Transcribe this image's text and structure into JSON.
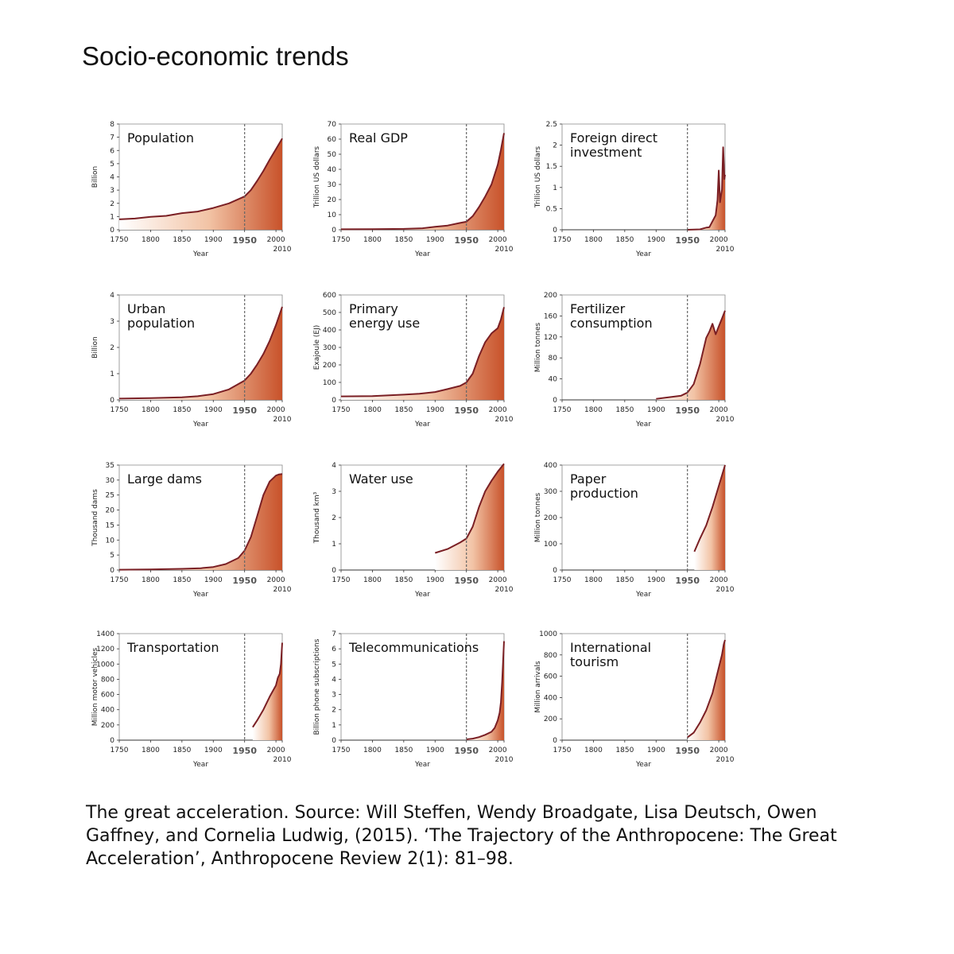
{
  "title": "Socio-economic trends",
  "caption": "The great acceleration. Source: Will Steffen, Wendy Broadgate, Lisa Deutsch, Owen Gaffney, and Cornelia Ludwig, (2015). ‘The Trajectory of the Anthropocene: The Great Acceleration’, Anthropocene Review 2(1): 81–98.",
  "colors": {
    "line": "#7a1f24",
    "fill_dark": "#c8522a",
    "fill_light": "#ffffff",
    "marker": "#666666",
    "axis": "#333333"
  },
  "chart_data": [
    {
      "type": "area",
      "title": [
        "Population"
      ],
      "ylabel": "Billion",
      "xlabel": "Year",
      "xlim": [
        1750,
        2010
      ],
      "x_ticks": [
        "1750",
        "1800",
        "1850",
        "1900",
        "1950",
        "2000",
        "2010"
      ],
      "ylim": [
        0,
        8
      ],
      "y_ticks": [
        "0",
        "1",
        "2",
        "3",
        "4",
        "5",
        "6",
        "7",
        "8"
      ],
      "marker_year": 1950,
      "x": [
        1750,
        1775,
        1800,
        1825,
        1850,
        1875,
        1900,
        1925,
        1950,
        1960,
        1970,
        1980,
        1990,
        2000,
        2010
      ],
      "values": [
        0.79,
        0.85,
        0.98,
        1.05,
        1.26,
        1.38,
        1.65,
        2.0,
        2.52,
        3.0,
        3.7,
        4.45,
        5.3,
        6.1,
        6.9
      ]
    },
    {
      "type": "area",
      "title": [
        "Real GDP"
      ],
      "ylabel": "Trillion US dollars",
      "xlabel": "Year",
      "xlim": [
        1750,
        2010
      ],
      "x_ticks": [
        "1750",
        "1800",
        "1850",
        "1900",
        "1950",
        "2000",
        "2010"
      ],
      "ylim": [
        0,
        70
      ],
      "y_ticks": [
        "0",
        "10",
        "20",
        "30",
        "40",
        "50",
        "60",
        "70"
      ],
      "marker_year": 1950,
      "x": [
        1750,
        1800,
        1850,
        1880,
        1900,
        1920,
        1940,
        1950,
        1960,
        1970,
        1980,
        1990,
        2000,
        2005,
        2010
      ],
      "values": [
        0.3,
        0.4,
        0.6,
        1.0,
        2.0,
        2.8,
        4.5,
        5.3,
        9.0,
        15,
        22,
        30,
        43,
        53,
        64
      ]
    },
    {
      "type": "area",
      "title": [
        "Foreign direct",
        "investment"
      ],
      "ylabel": "Trillion US dollars",
      "xlabel": "Year",
      "xlim": [
        1750,
        2010
      ],
      "x_ticks": [
        "1750",
        "1800",
        "1850",
        "1900",
        "1950",
        "2000",
        "2010"
      ],
      "ylim": [
        0,
        2.5
      ],
      "y_ticks": [
        "0",
        "0.5",
        "1",
        "1.5",
        "2",
        "2.5"
      ],
      "marker_year": 1950,
      "x": [
        1950,
        1970,
        1980,
        1985,
        1990,
        1995,
        1998,
        2000,
        2002,
        2005,
        2007,
        2009,
        2010
      ],
      "values": [
        0.0,
        0.01,
        0.05,
        0.06,
        0.2,
        0.34,
        0.7,
        1.4,
        0.65,
        0.95,
        1.95,
        1.2,
        1.3
      ]
    },
    {
      "type": "area",
      "title": [
        "Urban",
        "population"
      ],
      "ylabel": "Billion",
      "xlabel": "Year",
      "xlim": [
        1750,
        2010
      ],
      "x_ticks": [
        "1750",
        "1800",
        "1850",
        "1900",
        "1950",
        "2000",
        "2010"
      ],
      "ylim": [
        0,
        4
      ],
      "y_ticks": [
        "0",
        "1",
        "2",
        "3",
        "4"
      ],
      "marker_year": 1950,
      "x": [
        1750,
        1800,
        1850,
        1875,
        1900,
        1925,
        1950,
        1960,
        1970,
        1980,
        1990,
        2000,
        2010
      ],
      "values": [
        0.05,
        0.07,
        0.1,
        0.14,
        0.22,
        0.4,
        0.74,
        1.0,
        1.35,
        1.75,
        2.25,
        2.85,
        3.55
      ]
    },
    {
      "type": "area",
      "title": [
        "Primary",
        "energy use"
      ],
      "ylabel": "Exajoule (EJ)",
      "xlabel": "Year",
      "xlim": [
        1750,
        2010
      ],
      "x_ticks": [
        "1750",
        "1800",
        "1850",
        "1900",
        "1950",
        "2000",
        "2010"
      ],
      "ylim": [
        0,
        600
      ],
      "y_ticks": [
        "0",
        "100",
        "200",
        "300",
        "400",
        "500",
        "600"
      ],
      "marker_year": 1950,
      "x": [
        1750,
        1800,
        1850,
        1875,
        1900,
        1920,
        1940,
        1950,
        1960,
        1970,
        1980,
        1990,
        2000,
        2005,
        2010
      ],
      "values": [
        20,
        22,
        30,
        35,
        45,
        62,
        80,
        100,
        150,
        250,
        330,
        380,
        410,
        460,
        530
      ]
    },
    {
      "type": "area",
      "title": [
        "Fertilizer",
        "consumption"
      ],
      "ylabel": "Million tonnes",
      "xlabel": "Year",
      "xlim": [
        1750,
        2010
      ],
      "x_ticks": [
        "1750",
        "1800",
        "1850",
        "1900",
        "1950",
        "2000",
        "2010"
      ],
      "ylim": [
        0,
        200
      ],
      "y_ticks": [
        "0",
        "40",
        "80",
        "120",
        "160",
        "200"
      ],
      "marker_year": 1950,
      "x": [
        1900,
        1920,
        1940,
        1950,
        1960,
        1970,
        1980,
        1985,
        1990,
        1995,
        2000,
        2005,
        2010
      ],
      "values": [
        2,
        5,
        8,
        14,
        30,
        68,
        118,
        130,
        145,
        125,
        140,
        155,
        170
      ]
    },
    {
      "type": "area",
      "title": [
        "Large dams"
      ],
      "ylabel": "Thousand dams",
      "xlabel": "Year",
      "xlim": [
        1750,
        2010
      ],
      "x_ticks": [
        "1750",
        "1800",
        "1850",
        "1900",
        "1950",
        "2000",
        "2010"
      ],
      "ylim": [
        0,
        35
      ],
      "y_ticks": [
        "0",
        "5",
        "10",
        "15",
        "20",
        "25",
        "30",
        "35"
      ],
      "marker_year": 1950,
      "x": [
        1750,
        1800,
        1850,
        1880,
        1900,
        1920,
        1940,
        1950,
        1960,
        1970,
        1980,
        1990,
        2000,
        2005,
        2010
      ],
      "values": [
        0.1,
        0.2,
        0.4,
        0.6,
        1.0,
        2.0,
        4.0,
        6.5,
        11,
        18,
        25,
        29.5,
        31.5,
        31.9,
        32
      ]
    },
    {
      "type": "area",
      "title": [
        "Water use"
      ],
      "ylabel": "Thousand km³",
      "xlabel": "Year",
      "xlim": [
        1750,
        2010
      ],
      "x_ticks": [
        "1750",
        "1800",
        "1850",
        "1900",
        "1950",
        "2000",
        "2010"
      ],
      "ylim": [
        0,
        4
      ],
      "y_ticks": [
        "0",
        "1",
        "2",
        "3",
        "4"
      ],
      "marker_year": 1950,
      "x": [
        1900,
        1920,
        1940,
        1950,
        1960,
        1970,
        1980,
        1990,
        2000,
        2005,
        2010
      ],
      "values": [
        0.65,
        0.8,
        1.05,
        1.2,
        1.65,
        2.4,
        3.0,
        3.4,
        3.75,
        3.9,
        4.05
      ]
    },
    {
      "type": "area",
      "title": [
        "Paper",
        "production"
      ],
      "ylabel": "Million tonnes",
      "xlabel": "Year",
      "xlim": [
        1750,
        2010
      ],
      "x_ticks": [
        "1750",
        "1800",
        "1850",
        "1900",
        "1950",
        "2000",
        "2010"
      ],
      "ylim": [
        0,
        400
      ],
      "y_ticks": [
        "0",
        "100",
        "200",
        "300",
        "400"
      ],
      "marker_year": 1950,
      "x": [
        1961,
        1970,
        1980,
        1990,
        2000,
        2005,
        2010
      ],
      "values": [
        70,
        120,
        170,
        240,
        320,
        360,
        400
      ]
    },
    {
      "type": "area",
      "title": [
        "Transportation"
      ],
      "ylabel": "Million motor vehicles",
      "xlabel": "Year",
      "xlim": [
        1750,
        2010
      ],
      "x_ticks": [
        "1750",
        "1800",
        "1850",
        "1900",
        "1950",
        "2000",
        "2010"
      ],
      "ylim": [
        0,
        1400
      ],
      "y_ticks": [
        "0",
        "200",
        "400",
        "600",
        "800",
        "1000",
        "1200",
        "1400"
      ],
      "marker_year": 1950,
      "x": [
        1963,
        1970,
        1980,
        1990,
        2000,
        2003,
        2006,
        2008,
        2010
      ],
      "values": [
        170,
        260,
        400,
        570,
        720,
        820,
        870,
        1000,
        1280
      ]
    },
    {
      "type": "area",
      "title": [
        "Telecommunications"
      ],
      "ylabel": "Billion phone subscriptions",
      "xlabel": "Year",
      "xlim": [
        1750,
        2010
      ],
      "x_ticks": [
        "1750",
        "1800",
        "1850",
        "1900",
        "1950",
        "2000",
        "2010"
      ],
      "ylim": [
        0,
        7
      ],
      "y_ticks": [
        "0",
        "1",
        "2",
        "3",
        "4",
        "5",
        "6",
        "7"
      ],
      "marker_year": 1950,
      "x": [
        1950,
        1960,
        1970,
        1980,
        1990,
        1995,
        2000,
        2003,
        2005,
        2007,
        2010
      ],
      "values": [
        0.05,
        0.1,
        0.2,
        0.35,
        0.55,
        0.8,
        1.3,
        1.8,
        2.5,
        3.8,
        6.5
      ]
    },
    {
      "type": "area",
      "title": [
        "International",
        "tourism"
      ],
      "ylabel": "Million arrivals",
      "xlabel": "Year",
      "xlim": [
        1750,
        2010
      ],
      "x_ticks": [
        "1750",
        "1800",
        "1850",
        "1900",
        "1950",
        "2000",
        "2010"
      ],
      "ylim": [
        0,
        1000
      ],
      "y_ticks": [
        "0",
        "200",
        "400",
        "600",
        "800",
        "1000"
      ],
      "marker_year": 1950,
      "x": [
        1950,
        1960,
        1970,
        1980,
        1990,
        2000,
        2005,
        2008,
        2010
      ],
      "values": [
        25,
        70,
        165,
        280,
        440,
        680,
        800,
        900,
        940
      ]
    }
  ]
}
